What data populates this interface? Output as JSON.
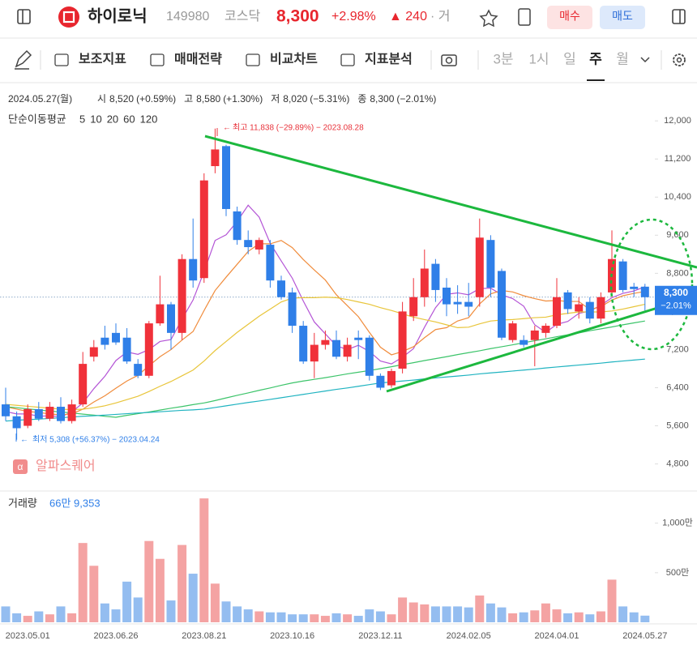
{
  "header": {
    "name": "하이로닉",
    "code": "149980",
    "market": "코스닥",
    "price": "8,300",
    "change_pct": "+2.98%",
    "change": "▲ 240",
    "more": "· 거",
    "buy": "매수",
    "sell": "매도"
  },
  "toolbar": {
    "items": [
      "보조지표",
      "매매전략",
      "비교차트",
      "지표분석"
    ],
    "periods": [
      "3분",
      "1시",
      "일",
      "주",
      "월"
    ],
    "selected_period": "주"
  },
  "chart_data": {
    "type": "candlestick",
    "info": {
      "date": "2024.05.27(월)",
      "items": [
        {
          "label": "시",
          "value": "8,520",
          "change": "(+0.59%)",
          "color": "#e8323a"
        },
        {
          "label": "고",
          "value": "8,580",
          "change": "(+1.30%)",
          "color": "#e8323a"
        },
        {
          "label": "저",
          "value": "8,020",
          "change": "(−5.31%)",
          "color": "#2f7fe8"
        },
        {
          "label": "종",
          "value": "8,300",
          "change": "(−2.01%)",
          "color": "#2f7fe8"
        }
      ]
    },
    "ma_label": "단순이동평균",
    "up_color": "#f0313a",
    "down_color": "#2f7fe8",
    "categories": [
      null,
      null,
      "2023.05.01",
      null,
      null,
      null,
      null,
      null,
      null,
      null,
      "2023.06.26",
      null,
      null,
      null,
      null,
      null,
      null,
      null,
      "2023.08.21",
      null,
      null,
      null,
      null,
      null,
      null,
      null,
      "2023.10.16",
      null,
      null,
      null,
      null,
      null,
      null,
      null,
      "2023.12.11",
      null,
      null,
      null,
      null,
      null,
      null,
      null,
      "2024.02.05",
      null,
      null,
      null,
      null,
      null,
      null,
      null,
      "2024.04.01",
      null,
      null,
      null,
      null,
      null,
      null,
      null,
      "2024.05.27"
    ],
    "open": [
      6050,
      5800,
      5600,
      5950,
      5750,
      6000,
      5700,
      6050,
      7050,
      7450,
      7550,
      7450,
      6900,
      6650,
      7750,
      8150,
      7550,
      9100,
      8700,
      11050,
      11470,
      10100,
      9500,
      9300,
      9400,
      8650,
      8400,
      7700,
      6950,
      7300,
      7400,
      7050,
      7450,
      7450,
      6650,
      6450,
      6800,
      7900,
      8300,
      9000,
      8500,
      8200,
      8200,
      8300,
      9500,
      8850,
      7400,
      7400,
      7400,
      7550,
      7700,
      8400,
      8000,
      8200,
      7850,
      8400,
      9050,
      8520,
      8520
    ],
    "high": [
      6400,
      5900,
      6050,
      6100,
      6100,
      6200,
      6150,
      7150,
      7400,
      7700,
      7750,
      7650,
      7000,
      7800,
      8750,
      8200,
      9200,
      9950,
      10900,
      11838,
      11500,
      10200,
      9700,
      9550,
      9500,
      8750,
      8500,
      7800,
      7550,
      7600,
      7600,
      7450,
      7600,
      7500,
      6700,
      6800,
      8200,
      8700,
      9300,
      9100,
      8700,
      8550,
      8600,
      9950,
      9600,
      8900,
      7800,
      7500,
      7700,
      7750,
      8700,
      8450,
      8300,
      8300,
      8400,
      9700,
      9100,
      8600,
      8580
    ],
    "low": [
      5700,
      5308,
      5550,
      5700,
      5700,
      5650,
      5650,
      6000,
      6950,
      7200,
      7300,
      6900,
      6600,
      6600,
      7700,
      7200,
      7400,
      8500,
      8600,
      10900,
      10000,
      9400,
      9200,
      9200,
      8500,
      8250,
      7550,
      6900,
      6600,
      7200,
      7000,
      6950,
      7000,
      6550,
      6350,
      6400,
      6700,
      7800,
      8100,
      8200,
      7900,
      7950,
      7900,
      8100,
      8300,
      7400,
      7350,
      7250,
      6850,
      7450,
      7650,
      7950,
      7850,
      7750,
      7750,
      8300,
      8400,
      8300,
      8020
    ],
    "close": [
      5800,
      5550,
      5950,
      5750,
      6000,
      5700,
      6050,
      6900,
      7250,
      7300,
      7350,
      6950,
      6650,
      7750,
      8150,
      7550,
      9100,
      8650,
      10750,
      11400,
      10150,
      9500,
      9350,
      9500,
      8650,
      8300,
      7700,
      6950,
      7300,
      7400,
      7050,
      7300,
      7400,
      6650,
      6400,
      6750,
      8000,
      8300,
      8900,
      8450,
      8150,
      8150,
      8100,
      9550,
      8500,
      7450,
      7750,
      7300,
      7600,
      7700,
      8300,
      8050,
      8150,
      7850,
      8300,
      9100,
      8450,
      8470,
      8300
    ],
    "ma_series": [
      {
        "name": "5",
        "color": "#b455d6",
        "values": [
          5900,
          5850,
          5850,
          5800,
          5810,
          5790,
          5890,
          6080,
          6380,
          6640,
          6970,
          7150,
          7100,
          7200,
          7370,
          7410,
          7840,
          8240,
          8840,
          9490,
          9610,
          9890,
          10230,
          9980,
          9430,
          9060,
          8700,
          8220,
          7780,
          7530,
          7280,
          7200,
          7290,
          7160,
          6960,
          6900,
          7040,
          7220,
          7670,
          8080,
          8360,
          8390,
          8350,
          8480,
          8490,
          8350,
          8270,
          8110,
          7720,
          7560,
          7730,
          7790,
          7960,
          8010,
          8130,
          8290,
          8380,
          8430,
          8520
        ]
      },
      {
        "name": "10",
        "color": "#f08c3c",
        "values": [
          6000,
          5950,
          5900,
          5880,
          5850,
          5830,
          5850,
          5950,
          6100,
          6230,
          6390,
          6540,
          6660,
          6860,
          7050,
          7200,
          7400,
          7580,
          8020,
          8440,
          8720,
          8990,
          9260,
          9420,
          9420,
          9490,
          9340,
          9090,
          8870,
          8660,
          8350,
          8120,
          7890,
          7560,
          7250,
          7090,
          7160,
          7260,
          7450,
          7620,
          7660,
          7800,
          7870,
          8160,
          8370,
          8440,
          8410,
          8330,
          8270,
          8220,
          8230,
          8210,
          8210,
          8040,
          8100,
          8240,
          8330,
          8380,
          8420
        ]
      },
      {
        "name": "20",
        "color": "#e8c53a",
        "values": [
          6050,
          6030,
          6010,
          5990,
          5970,
          5950,
          5940,
          5950,
          5980,
          6020,
          6080,
          6150,
          6220,
          6320,
          6430,
          6530,
          6650,
          6770,
          6960,
          7180,
          7370,
          7560,
          7730,
          7900,
          8050,
          8200,
          8280,
          8290,
          8290,
          8300,
          8290,
          8250,
          8200,
          8150,
          8080,
          8020,
          7950,
          7880,
          7830,
          7780,
          7720,
          7660,
          7670,
          7740,
          7800,
          7820,
          7830,
          7850,
          7870,
          7880,
          7930,
          7960,
          7990,
          7990,
          7990,
          8010,
          8050,
          8100,
          8150
        ]
      },
      {
        "name": "60",
        "color": "#3cc46a",
        "values": [
          6000,
          5980,
          5955,
          5935,
          5910,
          5890,
          5870,
          5845,
          5825,
          5800,
          5780,
          5820,
          5855,
          5890,
          5930,
          5970,
          6005,
          6045,
          6080,
          6130,
          6185,
          6240,
          6290,
          6345,
          6395,
          6450,
          6500,
          6540,
          6575,
          6610,
          6650,
          6690,
          6725,
          6760,
          6800,
          6840,
          6885,
          6925,
          6970,
          7010,
          7050,
          7095,
          7135,
          7175,
          7220,
          7260,
          7300,
          7345,
          7385,
          7425,
          7470,
          7510,
          7550,
          7595,
          7635,
          7675,
          7720,
          7760,
          7800
        ]
      },
      {
        "name": "120",
        "color": "#1fb3c0",
        "values": [
          5700,
          5715,
          5730,
          5740,
          5755,
          5770,
          5785,
          5800,
          5810,
          5825,
          5840,
          5855,
          5870,
          5880,
          5895,
          5910,
          5925,
          5935,
          5950,
          5985,
          6020,
          6055,
          6090,
          6120,
          6155,
          6190,
          6225,
          6260,
          6295,
          6330,
          6365,
          6395,
          6430,
          6465,
          6500,
          6520,
          6540,
          6560,
          6585,
          6605,
          6625,
          6645,
          6665,
          6690,
          6710,
          6730,
          6750,
          6770,
          6790,
          6815,
          6835,
          6855,
          6875,
          6895,
          6915,
          6940,
          6960,
          6980,
          7000
        ]
      }
    ],
    "ylim": [
      4300,
      12700
    ],
    "yticks": [
      {
        "value": 4800,
        "label": "4,800"
      },
      {
        "value": 5600,
        "label": "5,600"
      },
      {
        "value": 6400,
        "label": "6,400"
      },
      {
        "value": 7200,
        "label": "7,200"
      },
      {
        "value": 8000,
        "label": "8,000"
      },
      {
        "value": 8800,
        "label": "8,800"
      },
      {
        "value": 9600,
        "label": "9,600"
      },
      {
        "value": 10400,
        "label": "10,400"
      },
      {
        "value": 11200,
        "label": "11,200"
      },
      {
        "value": 12000,
        "label": "12,000"
      }
    ],
    "annotations": [
      "최고 11,838 (−29.89%) − 2023.08.28",
      "최저 5,308 (+56.37%) − 2023.04.24"
    ],
    "last_label": {
      "price": "8,300",
      "change": "−2.01%"
    },
    "watermark": "알파스퀘어",
    "volume": {
      "label": "거래량",
      "value": 66.9353,
      "value_label": "66만 9,353",
      "up_color": "#f4a3a3",
      "down_color": "#94bdf0",
      "values": [
        160,
        90,
        65,
        110,
        80,
        160,
        90,
        800,
        570,
        190,
        130,
        410,
        250,
        820,
        640,
        220,
        780,
        490,
        1250,
        390,
        210,
        160,
        130,
        110,
        100,
        100,
        80,
        80,
        80,
        65,
        90,
        80,
        65,
        130,
        110,
        80,
        250,
        200,
        180,
        160,
        160,
        160,
        150,
        270,
        190,
        150,
        90,
        100,
        120,
        190,
        130,
        90,
        100,
        80,
        110,
        430,
        160,
        100,
        66.9353
      ],
      "ylim": [
        0,
        1300
      ],
      "yticks": [
        {
          "value": 500,
          "label": "500만"
        },
        {
          "value": 1000,
          "label": "1,000만"
        }
      ]
    }
  }
}
